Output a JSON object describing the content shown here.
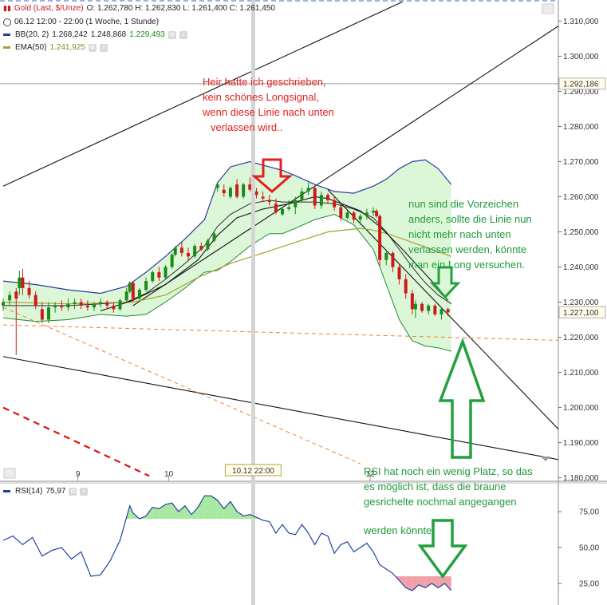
{
  "header": {
    "instrument": "Gold (Last, $/Unze)",
    "ohlc": "O: 1.262,780   H: 1.262,830   L: 1.261,400   C: 1.261,450",
    "time": "06.12 12:00 - 22:00 (1 Woche, 1 Stunde)",
    "bb_label": "BB(20, 2)",
    "bb_values": [
      "1.268,242",
      "1.248,868",
      "1.229,493"
    ],
    "ema_label": "EMA(50)",
    "ema_value": "1.241,925",
    "rsi_label": "RSI(14)",
    "rsi_value": "75,97"
  },
  "colors": {
    "candle_up": "#1a8a1a",
    "candle_down": "#cc1a1a",
    "bb_band": "#2b3ba0",
    "bb_fill": "#dcf7d8",
    "ema": "#a8a030",
    "channel": "#111111",
    "dashed_orange": "#f08030",
    "dashed_red": "#e01010",
    "rsi_line": "#2040a0",
    "rsi_over": "#a8e8a0",
    "rsi_under": "#f0a0a8"
  },
  "annotations": {
    "red_note": [
      "Heir hatte ich geschrieben,",
      "kein schönes Longsignal,",
      "wenn diese Linie nach unten",
      "verlassen wird.."
    ],
    "green_note_top": [
      "nun sind die Vorzeichen",
      "anders, sollte die Linie nun",
      "nicht mehr nach unten",
      "verlassen werden, könnte",
      "man ein Long versuchen."
    ],
    "green_note_bottom": [
      "RSI hat noch ein wenig Platz, so das",
      "es möglich ist, dass die braune",
      "gesrichelte nochmal angegangen",
      "werden könnte."
    ]
  },
  "chart_data": {
    "type": "candlestick",
    "price_axis": {
      "ticks": [
        1180000,
        1190000,
        1200000,
        1210000,
        1220000,
        1230000,
        1240000,
        1250000,
        1260000,
        1270000,
        1280000,
        1290000,
        1300000,
        1310000
      ],
      "tick_labels": [
        "1.180,000",
        "1.190,000",
        "1.200,000",
        "1.210,000",
        "1.220,000",
        "1.230,000",
        "1.240,000",
        "1.250,000",
        "1.260,000",
        "1.270,000",
        "1.280,000",
        "1.290,000",
        "1.300,000",
        "1.310,000"
      ],
      "ylim": [
        1179000,
        1316000
      ],
      "markers": [
        {
          "label": "1.292,186",
          "value": 1292186
        },
        {
          "label": "1.227,100",
          "value": 1227100
        }
      ]
    },
    "x_axis": {
      "labels": [
        {
          "label": "9",
          "t": 23
        },
        {
          "label": "10",
          "t": 51
        },
        {
          "label": "10.12 22:00",
          "t": 77,
          "highlight": true
        },
        {
          "label": "12",
          "t": 113
        }
      ],
      "tlim": [
        0,
        175
      ]
    },
    "candles": [
      {
        "t": 0,
        "o": 1229000,
        "h": 1231000,
        "l": 1227500,
        "c": 1230000
      },
      {
        "t": 2,
        "o": 1230500,
        "h": 1233000,
        "l": 1229000,
        "c": 1232000
      },
      {
        "t": 4,
        "o": 1233000,
        "h": 1234000,
        "l": 1215000,
        "c": 1231000
      },
      {
        "t": 5,
        "o": 1234000,
        "h": 1239000,
        "l": 1232000,
        "c": 1237000
      },
      {
        "t": 6,
        "o": 1237000,
        "h": 1239500,
        "l": 1232000,
        "c": 1234000
      },
      {
        "t": 8,
        "o": 1234000,
        "h": 1236000,
        "l": 1231000,
        "c": 1232000
      },
      {
        "t": 10,
        "o": 1232000,
        "h": 1233000,
        "l": 1228000,
        "c": 1229000
      },
      {
        "t": 12,
        "o": 1228000,
        "h": 1230000,
        "l": 1224000,
        "c": 1225000
      },
      {
        "t": 14,
        "o": 1225000,
        "h": 1230000,
        "l": 1224000,
        "c": 1228500
      },
      {
        "t": 16,
        "o": 1228500,
        "h": 1230000,
        "l": 1227000,
        "c": 1229000
      },
      {
        "t": 18,
        "o": 1229000,
        "h": 1230500,
        "l": 1227500,
        "c": 1228500
      },
      {
        "t": 20,
        "o": 1228500,
        "h": 1231000,
        "l": 1227500,
        "c": 1229500
      },
      {
        "t": 22,
        "o": 1229500,
        "h": 1231000,
        "l": 1228000,
        "c": 1230000
      },
      {
        "t": 24,
        "o": 1230000,
        "h": 1231000,
        "l": 1228000,
        "c": 1229000
      },
      {
        "t": 26,
        "o": 1229000,
        "h": 1230500,
        "l": 1227500,
        "c": 1228500
      },
      {
        "t": 28,
        "o": 1228500,
        "h": 1230000,
        "l": 1227500,
        "c": 1229500
      },
      {
        "t": 30,
        "o": 1229500,
        "h": 1231000,
        "l": 1228500,
        "c": 1230000
      },
      {
        "t": 32,
        "o": 1230000,
        "h": 1230500,
        "l": 1228000,
        "c": 1229000
      },
      {
        "t": 34,
        "o": 1229000,
        "h": 1230000,
        "l": 1227000,
        "c": 1228000
      },
      {
        "t": 36,
        "o": 1228000,
        "h": 1231000,
        "l": 1227500,
        "c": 1230500
      },
      {
        "t": 38,
        "o": 1230500,
        "h": 1234000,
        "l": 1230000,
        "c": 1233000
      },
      {
        "t": 39,
        "o": 1233000,
        "h": 1236000,
        "l": 1232500,
        "c": 1235500
      },
      {
        "t": 40,
        "o": 1235500,
        "h": 1236000,
        "l": 1230000,
        "c": 1231000
      },
      {
        "t": 42,
        "o": 1231000,
        "h": 1234000,
        "l": 1230500,
        "c": 1233500
      },
      {
        "t": 44,
        "o": 1233500,
        "h": 1237000,
        "l": 1233000,
        "c": 1236000
      },
      {
        "t": 46,
        "o": 1236000,
        "h": 1239000,
        "l": 1235500,
        "c": 1238500
      },
      {
        "t": 48,
        "o": 1238500,
        "h": 1240000,
        "l": 1236000,
        "c": 1237000
      },
      {
        "t": 50,
        "o": 1237000,
        "h": 1240500,
        "l": 1236500,
        "c": 1240000
      },
      {
        "t": 52,
        "o": 1240000,
        "h": 1244000,
        "l": 1239500,
        "c": 1243500
      },
      {
        "t": 53,
        "o": 1243500,
        "h": 1246000,
        "l": 1243000,
        "c": 1245500
      },
      {
        "t": 55,
        "o": 1245500,
        "h": 1247000,
        "l": 1243000,
        "c": 1244000
      },
      {
        "t": 57,
        "o": 1244000,
        "h": 1245500,
        "l": 1242000,
        "c": 1243000
      },
      {
        "t": 59,
        "o": 1243000,
        "h": 1246500,
        "l": 1242500,
        "c": 1246000
      },
      {
        "t": 61,
        "o": 1246000,
        "h": 1247000,
        "l": 1244500,
        "c": 1245000
      },
      {
        "t": 63,
        "o": 1245000,
        "h": 1248000,
        "l": 1244500,
        "c": 1247500
      },
      {
        "t": 65,
        "o": 1247500,
        "h": 1250000,
        "l": 1247000,
        "c": 1249500
      },
      {
        "t": 66,
        "o": 1262500,
        "h": 1264000,
        "l": 1261500,
        "c": 1263500
      },
      {
        "t": 68,
        "o": 1262000,
        "h": 1263500,
        "l": 1260000,
        "c": 1261000
      },
      {
        "t": 70,
        "o": 1260000,
        "h": 1263000,
        "l": 1259500,
        "c": 1262500
      },
      {
        "t": 72,
        "o": 1263500,
        "h": 1265000,
        "l": 1259500,
        "c": 1260000
      },
      {
        "t": 74,
        "o": 1260000,
        "h": 1264000,
        "l": 1259500,
        "c": 1263500
      },
      {
        "t": 76,
        "o": 1263500,
        "h": 1265500,
        "l": 1261500,
        "c": 1262000
      },
      {
        "t": 78,
        "o": 1261500,
        "h": 1262500,
        "l": 1259500,
        "c": 1260500
      },
      {
        "t": 80,
        "o": 1260000,
        "h": 1261500,
        "l": 1258500,
        "c": 1259500
      },
      {
        "t": 82,
        "o": 1259000,
        "h": 1260500,
        "l": 1257500,
        "c": 1258500
      },
      {
        "t": 84,
        "o": 1258000,
        "h": 1259500,
        "l": 1255000,
        "c": 1255500
      },
      {
        "t": 86,
        "o": 1255000,
        "h": 1257000,
        "l": 1254500,
        "c": 1256500
      },
      {
        "t": 88,
        "o": 1256500,
        "h": 1259000,
        "l": 1256000,
        "c": 1257000
      },
      {
        "t": 90,
        "o": 1257000,
        "h": 1260000,
        "l": 1255000,
        "c": 1259000
      },
      {
        "t": 92,
        "o": 1259000,
        "h": 1262500,
        "l": 1258500,
        "c": 1261500
      },
      {
        "t": 94,
        "o": 1261500,
        "h": 1264000,
        "l": 1260500,
        "c": 1262500
      },
      {
        "t": 96,
        "o": 1262500,
        "h": 1263000,
        "l": 1256500,
        "c": 1257500
      },
      {
        "t": 98,
        "o": 1257500,
        "h": 1261500,
        "l": 1256500,
        "c": 1260500
      },
      {
        "t": 100,
        "o": 1260500,
        "h": 1261000,
        "l": 1258000,
        "c": 1259000
      },
      {
        "t": 102,
        "o": 1259000,
        "h": 1260000,
        "l": 1256000,
        "c": 1257000
      },
      {
        "t": 104,
        "o": 1257000,
        "h": 1258000,
        "l": 1253000,
        "c": 1254000
      },
      {
        "t": 106,
        "o": 1254000,
        "h": 1256000,
        "l": 1253500,
        "c": 1255500
      },
      {
        "t": 108,
        "o": 1255500,
        "h": 1256000,
        "l": 1252500,
        "c": 1253500
      },
      {
        "t": 110,
        "o": 1253500,
        "h": 1255000,
        "l": 1252000,
        "c": 1254500
      },
      {
        "t": 112,
        "o": 1254500,
        "h": 1256500,
        "l": 1253500,
        "c": 1255500
      },
      {
        "t": 114,
        "o": 1255500,
        "h": 1257000,
        "l": 1254500,
        "c": 1256000
      },
      {
        "t": 115,
        "o": 1256000,
        "h": 1256500,
        "l": 1254000,
        "c": 1254500
      },
      {
        "t": 116,
        "o": 1254500,
        "h": 1255000,
        "l": 1240000,
        "c": 1242000
      },
      {
        "t": 118,
        "o": 1242000,
        "h": 1245000,
        "l": 1240500,
        "c": 1244000
      },
      {
        "t": 120,
        "o": 1244000,
        "h": 1244500,
        "l": 1238500,
        "c": 1240000
      },
      {
        "t": 122,
        "o": 1240000,
        "h": 1241000,
        "l": 1235000,
        "c": 1236500
      },
      {
        "t": 124,
        "o": 1236500,
        "h": 1238000,
        "l": 1231000,
        "c": 1232500
      },
      {
        "t": 126,
        "o": 1232500,
        "h": 1233500,
        "l": 1226500,
        "c": 1228000
      },
      {
        "t": 127,
        "o": 1228000,
        "h": 1230500,
        "l": 1225500,
        "c": 1229500
      },
      {
        "t": 129,
        "o": 1229500,
        "h": 1230000,
        "l": 1227000,
        "c": 1227500
      },
      {
        "t": 131,
        "o": 1227500,
        "h": 1229500,
        "l": 1226500,
        "c": 1229000
      },
      {
        "t": 133,
        "o": 1229000,
        "h": 1229500,
        "l": 1226000,
        "c": 1226500
      },
      {
        "t": 135,
        "o": 1226500,
        "h": 1228500,
        "l": 1225000,
        "c": 1228000
      },
      {
        "t": 137,
        "o": 1228000,
        "h": 1228500,
        "l": 1226000,
        "c": 1227100
      }
    ],
    "bollinger": {
      "t": [
        0,
        10,
        20,
        30,
        38,
        44,
        50,
        56,
        62,
        66,
        70,
        76,
        82,
        86,
        90,
        96,
        102,
        108,
        114,
        118,
        122,
        126,
        130,
        134,
        138
      ],
      "upper": [
        1236000,
        1235000,
        1233500,
        1232500,
        1234500,
        1238500,
        1243000,
        1248000,
        1253500,
        1264000,
        1268500,
        1270000,
        1268500,
        1267500,
        1266000,
        1263500,
        1261500,
        1261000,
        1263000,
        1265000,
        1268000,
        1270000,
        1270500,
        1268000,
        1263500
      ],
      "middle": [
        1229000,
        1229000,
        1229000,
        1229500,
        1230000,
        1232500,
        1236500,
        1241000,
        1246000,
        1251500,
        1255000,
        1258000,
        1259000,
        1258500,
        1258500,
        1258500,
        1258000,
        1256500,
        1254000,
        1250000,
        1245000,
        1240000,
        1235500,
        1232000,
        1229500
      ],
      "lower": [
        1225500,
        1224500,
        1225000,
        1226500,
        1226000,
        1226500,
        1230000,
        1234000,
        1238500,
        1239000,
        1241500,
        1246000,
        1249500,
        1249500,
        1251000,
        1253500,
        1255000,
        1252000,
        1245000,
        1235000,
        1225000,
        1219000,
        1217500,
        1217000,
        1216000
      ]
    },
    "ema50": {
      "t": [
        0,
        20,
        40,
        50,
        60,
        70,
        80,
        90,
        100,
        110,
        114,
        120,
        126,
        132,
        138
      ],
      "values": [
        1230000,
        1229500,
        1230000,
        1232000,
        1237000,
        1241000,
        1244000,
        1247000,
        1250000,
        1251000,
        1250500,
        1249000,
        1247000,
        1245000,
        1243000
      ]
    },
    "ma_black": {
      "t": [
        30,
        40,
        50,
        60,
        66,
        72,
        80,
        88,
        96,
        100,
        110,
        116,
        122,
        128,
        134,
        137
      ],
      "values": [
        1227500,
        1230500,
        1235000,
        1242000,
        1249000,
        1254000,
        1256500,
        1258000,
        1260000,
        1259500,
        1256000,
        1251500,
        1246000,
        1240000,
        1234000,
        1230500
      ]
    },
    "lines": [
      {
        "kind": "channel-upper",
        "from": [
          0,
          1263000
        ],
        "to": [
          123,
          1315500
        ]
      },
      {
        "kind": "channel-middle",
        "from": [
          0,
          1292186
        ],
        "to": [
          175,
          1292186
        ],
        "horizontal": true
      },
      {
        "kind": "channel-lower",
        "from": [
          0,
          1214500
        ],
        "to": [
          175,
          1184500
        ]
      },
      {
        "kind": "trend-up-black",
        "from": [
          40,
          1229000
        ],
        "to": [
          175,
          1311000
        ]
      },
      {
        "kind": "trend-down-black",
        "from": [
          100,
          1262000
        ],
        "to": [
          175,
          1190000
        ]
      },
      {
        "kind": "dashed-orange-flat",
        "from": [
          0,
          1223500
        ],
        "to": [
          175,
          1219000
        ]
      },
      {
        "kind": "dashed-orange-down",
        "from": [
          0,
          1228500
        ],
        "to": [
          110,
          1184000
        ]
      },
      {
        "kind": "dashed-red",
        "from": [
          0,
          1200000
        ],
        "to": [
          45,
          1180500
        ]
      }
    ],
    "rsi": {
      "label": "RSI(14)",
      "ticks": [
        25,
        50,
        75
      ],
      "tick_labels": [
        "25,00",
        "50,00",
        "75,00"
      ],
      "ylim": [
        10,
        95
      ],
      "t": [
        0,
        3,
        6,
        9,
        12,
        15,
        18,
        21,
        24,
        27,
        30,
        33,
        36,
        39,
        40,
        42,
        44,
        46,
        48,
        50,
        52,
        54,
        56,
        58,
        60,
        62,
        64,
        66,
        68,
        70,
        72,
        74,
        76,
        78,
        80,
        82,
        84,
        86,
        88,
        90,
        92,
        94,
        96,
        98,
        100,
        102,
        104,
        106,
        108,
        110,
        112,
        114,
        116,
        118,
        120,
        122,
        124,
        126,
        128,
        130,
        132,
        134,
        136,
        138
      ],
      "values": [
        55,
        58,
        52,
        57,
        44,
        48,
        50,
        42,
        47,
        30,
        31,
        41,
        55,
        79,
        74,
        70,
        72,
        78,
        77,
        80,
        81,
        75,
        79,
        73,
        78,
        86,
        86,
        83,
        77,
        82,
        75,
        72,
        73,
        71,
        69,
        68,
        60,
        66,
        60,
        59,
        66,
        60,
        52,
        60,
        58,
        46,
        52,
        54,
        47,
        50,
        53,
        47,
        38,
        35,
        32,
        27,
        22,
        20,
        24,
        22,
        25,
        22,
        25,
        20
      ]
    }
  }
}
